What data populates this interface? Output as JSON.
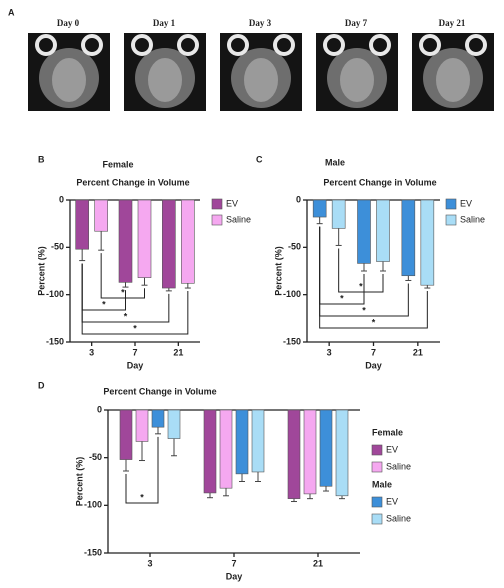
{
  "figure": {
    "panel_a": "A",
    "image_labels": [
      "Day 0",
      "Day 1",
      "Day 3",
      "Day 7",
      "Day 21"
    ]
  },
  "chart_data": [
    {
      "type": "bar",
      "panel": "B",
      "title": "Female",
      "subtitle": "Percent Change in Volume",
      "x_label": "Day",
      "y_label": "Percent (%)",
      "categories": [
        "3",
        "7",
        "21"
      ],
      "ylim": [
        -150,
        0
      ],
      "yticks": [
        0,
        -50,
        -100,
        -150
      ],
      "series": [
        {
          "name": "EV",
          "color": "#a0479a",
          "values": [
            -52,
            -87,
            -93
          ],
          "errors": [
            12,
            5,
            3
          ]
        },
        {
          "name": "Saline",
          "color": "#f5a8f0",
          "values": [
            -33,
            -82,
            -88
          ],
          "errors": [
            20,
            8,
            5
          ]
        }
      ],
      "comparisons": [
        {
          "from": [
            1,
            0
          ],
          "to": [
            1,
            1
          ],
          "label": "*"
        },
        {
          "from": [
            0,
            0
          ],
          "to": [
            0,
            1
          ],
          "label": "*"
        },
        {
          "from": [
            0,
            0
          ],
          "to": [
            0,
            2
          ],
          "label": "*"
        },
        {
          "from": [
            0,
            0
          ],
          "to": [
            1,
            2
          ],
          "label": "*"
        }
      ]
    },
    {
      "type": "bar",
      "panel": "C",
      "title": "Male",
      "subtitle": "Percent Change in Volume",
      "x_label": "Day",
      "y_label": "Percent (%)",
      "categories": [
        "3",
        "7",
        "21"
      ],
      "ylim": [
        -150,
        0
      ],
      "yticks": [
        0,
        -50,
        -100,
        -150
      ],
      "series": [
        {
          "name": "EV",
          "color": "#3d8fd9",
          "values": [
            -18,
            -67,
            -80
          ],
          "errors": [
            7,
            8,
            5
          ]
        },
        {
          "name": "Saline",
          "color": "#a9ddf6",
          "values": [
            -30,
            -65,
            -90
          ],
          "errors": [
            18,
            10,
            3
          ]
        }
      ],
      "comparisons": [
        {
          "from": [
            1,
            0
          ],
          "to": [
            1,
            1
          ],
          "label": "*"
        },
        {
          "from": [
            0,
            0
          ],
          "to": [
            0,
            1
          ],
          "label": "*"
        },
        {
          "from": [
            0,
            0
          ],
          "to": [
            0,
            2
          ],
          "label": "*"
        },
        {
          "from": [
            0,
            0
          ],
          "to": [
            1,
            2
          ],
          "label": "*"
        }
      ]
    },
    {
      "type": "bar",
      "panel": "D",
      "subtitle": "Percent Change in Volume",
      "x_label": "Day",
      "y_label": "Percent (%)",
      "categories": [
        "3",
        "7",
        "21"
      ],
      "ylim": [
        -150,
        0
      ],
      "yticks": [
        0,
        -50,
        -100,
        -150
      ],
      "series": [
        {
          "group": "Female",
          "name": "EV",
          "color": "#a0479a",
          "values": [
            -52,
            -87,
            -93
          ],
          "errors": [
            12,
            5,
            3
          ]
        },
        {
          "group": "Female",
          "name": "Saline",
          "color": "#f5a8f0",
          "values": [
            -33,
            -82,
            -88
          ],
          "errors": [
            20,
            8,
            5
          ]
        },
        {
          "group": "Male",
          "name": "EV",
          "color": "#3d8fd9",
          "values": [
            -18,
            -67,
            -80
          ],
          "errors": [
            7,
            8,
            5
          ]
        },
        {
          "group": "Male",
          "name": "Saline",
          "color": "#a9ddf6",
          "values": [
            -30,
            -65,
            -90
          ],
          "errors": [
            18,
            10,
            3
          ]
        }
      ],
      "comparisons": [
        {
          "from": [
            0,
            0
          ],
          "to": [
            2,
            0
          ],
          "label": "*"
        }
      ]
    }
  ]
}
